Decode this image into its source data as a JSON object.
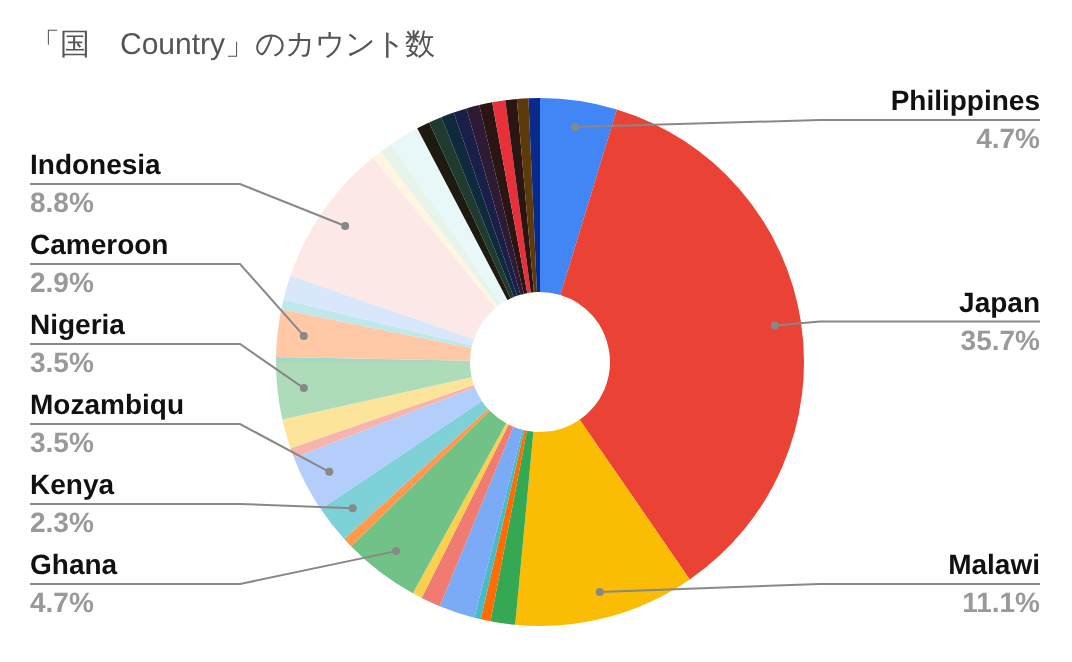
{
  "chart_data": {
    "type": "donut",
    "title": "「国　Country」のカウント数",
    "categories": [
      "Philippines",
      "Japan",
      "Malawi",
      null,
      null,
      null,
      null,
      null,
      null,
      "Ghana",
      null,
      "Kenya",
      "Mozambiqu",
      null,
      null,
      "Nigeria",
      null,
      "Cameroon",
      null,
      null,
      "Indonesia",
      null,
      null,
      null,
      null,
      null,
      null,
      null,
      null,
      null,
      null,
      null,
      null,
      null
    ],
    "values": [
      4.7,
      35.7,
      11.1,
      1.5,
      0.6,
      0.4,
      2.2,
      1.2,
      0.6,
      4.7,
      0.6,
      2.3,
      3.5,
      0.6,
      1.8,
      3.5,
      0.3,
      2.9,
      0.6,
      1.5,
      8.8,
      0.6,
      0.8,
      1.8,
      0.8,
      0.8,
      0.8,
      0.8,
      0.8,
      0.8,
      0.8,
      0.7,
      0.7,
      0.7
    ],
    "value_labels": [
      "4.7%",
      "35.7%",
      "11.1%",
      null,
      null,
      null,
      null,
      null,
      null,
      "4.7%",
      null,
      "2.3%",
      "3.5%",
      null,
      null,
      "3.5%",
      null,
      "2.9%",
      null,
      null,
      "8.8%",
      null,
      null,
      null,
      null,
      null,
      null,
      null,
      null,
      null,
      null,
      null,
      null,
      null
    ],
    "colors": [
      "#4285f4",
      "#ea4335",
      "#fbbc04",
      "#34a853",
      "#ff6d01",
      "#46bdc6",
      "#7baaf7",
      "#f07b72",
      "#fcd04f",
      "#71c287",
      "#ff994d",
      "#7ed1d7",
      "#b3cefb",
      "#f7b4ae",
      "#fde49b",
      "#aedcba",
      "#a3d9c6",
      "#ffc8a6",
      "#bfe8eb",
      "#d9e7fd",
      "#fce8e6",
      "#fef6e0",
      "#e6f4ea",
      "#e8f7f8",
      "#1e1a10",
      "#1f3a2e",
      "#0f2a3d",
      "#1a1f4a",
      "#2e1a33",
      "#2a1512",
      "#e8303a",
      "#2a1512",
      "#5c3a0a",
      "#0a2a8a"
    ]
  }
}
